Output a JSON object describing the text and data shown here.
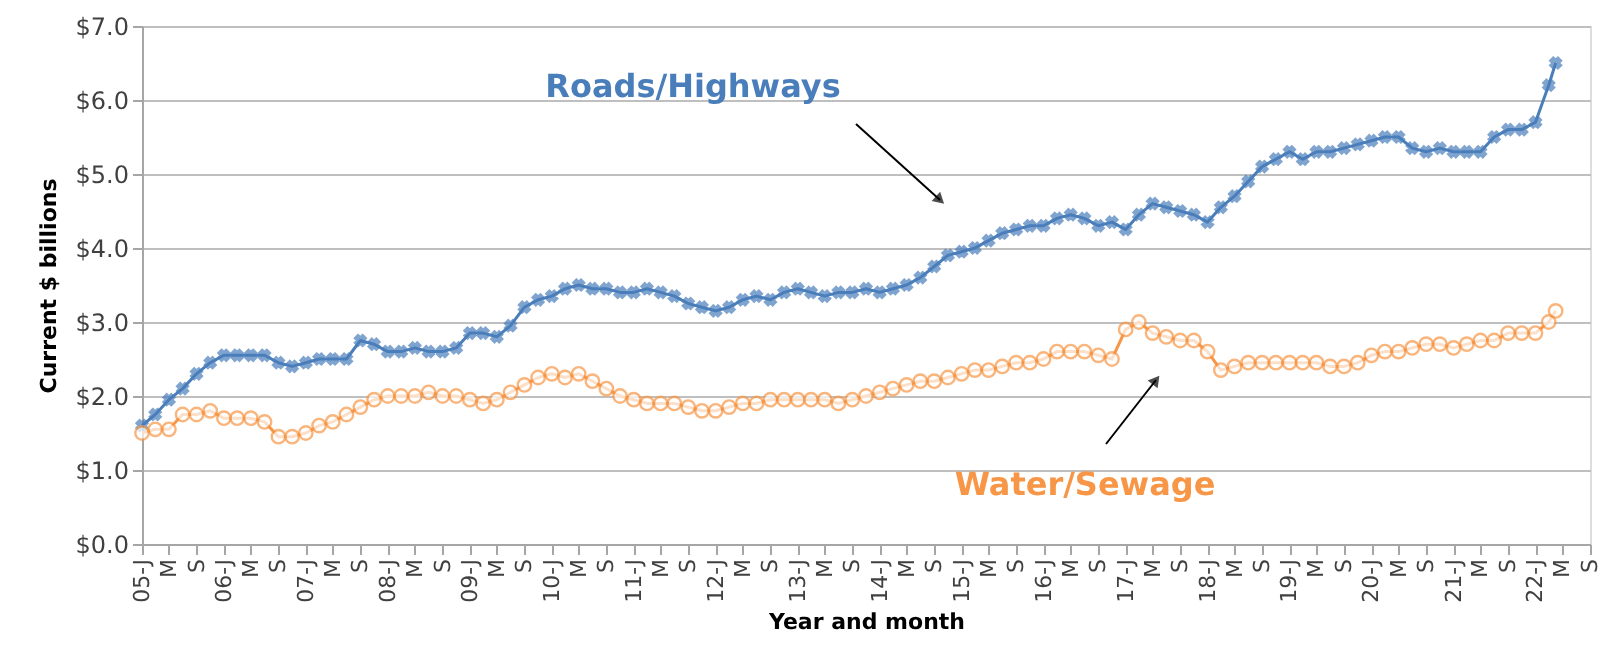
{
  "chart_data": {
    "type": "line",
    "xlabel": "Year and month",
    "ylabel": "Current $ billions",
    "x": [
      "2005-01",
      "2005-03",
      "2005-05",
      "2005-07",
      "2005-09",
      "2005-11",
      "2006-01",
      "2006-03",
      "2006-05",
      "2006-07",
      "2006-09",
      "2006-11",
      "2007-01",
      "2007-03",
      "2007-05",
      "2007-07",
      "2007-09",
      "2007-11",
      "2008-01",
      "2008-03",
      "2008-05",
      "2008-07",
      "2008-09",
      "2008-11",
      "2009-01",
      "2009-03",
      "2009-05",
      "2009-07",
      "2009-09",
      "2009-11",
      "2010-01",
      "2010-03",
      "2010-05",
      "2010-07",
      "2010-09",
      "2010-11",
      "2011-01",
      "2011-03",
      "2011-05",
      "2011-07",
      "2011-09",
      "2011-11",
      "2012-01",
      "2012-03",
      "2012-05",
      "2012-07",
      "2012-09",
      "2012-11",
      "2013-01",
      "2013-03",
      "2013-05",
      "2013-07",
      "2013-09",
      "2013-11",
      "2014-01",
      "2014-03",
      "2014-05",
      "2014-07",
      "2014-09",
      "2014-11",
      "2015-01",
      "2015-03",
      "2015-05",
      "2015-07",
      "2015-09",
      "2015-11",
      "2016-01",
      "2016-03",
      "2016-05",
      "2016-07",
      "2016-09",
      "2016-11",
      "2017-01",
      "2017-03",
      "2017-05",
      "2017-07",
      "2017-09",
      "2017-11",
      "2018-01",
      "2018-03",
      "2018-05",
      "2018-07",
      "2018-09",
      "2018-11",
      "2019-01",
      "2019-03",
      "2019-05",
      "2019-07",
      "2019-09",
      "2019-11",
      "2020-01",
      "2020-03",
      "2020-05",
      "2020-07",
      "2020-09",
      "2020-11",
      "2021-01",
      "2021-03",
      "2021-05",
      "2021-07",
      "2021-09",
      "2021-11",
      "2022-01",
      "2022-03",
      "2022-04"
    ],
    "series": [
      {
        "name": "Roads/Highways",
        "color": "#4a7ebb",
        "marker": "cross",
        "values": [
          1.6,
          1.75,
          1.95,
          2.1,
          2.3,
          2.45,
          2.55,
          2.55,
          2.55,
          2.55,
          2.45,
          2.4,
          2.45,
          2.5,
          2.5,
          2.5,
          2.75,
          2.7,
          2.6,
          2.6,
          2.65,
          2.6,
          2.6,
          2.65,
          2.85,
          2.85,
          2.8,
          2.95,
          3.2,
          3.3,
          3.35,
          3.45,
          3.5,
          3.45,
          3.45,
          3.4,
          3.4,
          3.45,
          3.4,
          3.35,
          3.25,
          3.2,
          3.15,
          3.2,
          3.3,
          3.35,
          3.3,
          3.4,
          3.45,
          3.4,
          3.35,
          3.4,
          3.4,
          3.45,
          3.4,
          3.45,
          3.5,
          3.6,
          3.75,
          3.9,
          3.95,
          4.0,
          4.1,
          4.2,
          4.25,
          4.3,
          4.3,
          4.4,
          4.45,
          4.4,
          4.3,
          4.35,
          4.25,
          4.45,
          4.6,
          4.55,
          4.5,
          4.45,
          4.35,
          4.55,
          4.7,
          4.9,
          5.1,
          5.2,
          5.3,
          5.2,
          5.3,
          5.3,
          5.35,
          5.4,
          5.45,
          5.5,
          5.5,
          5.35,
          5.3,
          5.35,
          5.3,
          5.3,
          5.3,
          5.5,
          5.6,
          5.6,
          5.7,
          6.2,
          6.5
        ]
      },
      {
        "name": "Water/Sewage",
        "color": "#f79646",
        "marker": "circle",
        "values": [
          1.5,
          1.55,
          1.55,
          1.75,
          1.75,
          1.8,
          1.7,
          1.7,
          1.7,
          1.65,
          1.45,
          1.45,
          1.5,
          1.6,
          1.65,
          1.75,
          1.85,
          1.95,
          2.0,
          2.0,
          2.0,
          2.05,
          2.0,
          2.0,
          1.95,
          1.9,
          1.95,
          2.05,
          2.15,
          2.25,
          2.3,
          2.25,
          2.3,
          2.2,
          2.1,
          2.0,
          1.95,
          1.9,
          1.9,
          1.9,
          1.85,
          1.8,
          1.8,
          1.85,
          1.9,
          1.9,
          1.95,
          1.95,
          1.95,
          1.95,
          1.95,
          1.9,
          1.95,
          2.0,
          2.05,
          2.1,
          2.15,
          2.2,
          2.2,
          2.25,
          2.3,
          2.35,
          2.35,
          2.4,
          2.45,
          2.45,
          2.5,
          2.6,
          2.6,
          2.6,
          2.55,
          2.5,
          2.9,
          3.0,
          2.85,
          2.8,
          2.75,
          2.75,
          2.6,
          2.35,
          2.4,
          2.45,
          2.45,
          2.45,
          2.45,
          2.45,
          2.45,
          2.4,
          2.4,
          2.45,
          2.55,
          2.6,
          2.6,
          2.65,
          2.7,
          2.7,
          2.65,
          2.7,
          2.75,
          2.75,
          2.85,
          2.85,
          2.85,
          3.0,
          3.15
        ]
      }
    ],
    "xlim": [
      "2005-01",
      "2022-09"
    ],
    "xticks": [
      {
        "value": "2005-01",
        "label": "05-J"
      },
      {
        "value": "2005-05",
        "label": "M"
      },
      {
        "value": "2005-09",
        "label": "S"
      },
      {
        "value": "2006-01",
        "label": "06-J"
      },
      {
        "value": "2006-05",
        "label": "M"
      },
      {
        "value": "2006-09",
        "label": "S"
      },
      {
        "value": "2007-01",
        "label": "07-J"
      },
      {
        "value": "2007-05",
        "label": "M"
      },
      {
        "value": "2007-09",
        "label": "S"
      },
      {
        "value": "2008-01",
        "label": "08-J"
      },
      {
        "value": "2008-05",
        "label": "M"
      },
      {
        "value": "2008-09",
        "label": "S"
      },
      {
        "value": "2009-01",
        "label": "09-J"
      },
      {
        "value": "2009-05",
        "label": "M"
      },
      {
        "value": "2009-09",
        "label": "S"
      },
      {
        "value": "2010-01",
        "label": "10-J"
      },
      {
        "value": "2010-05",
        "label": "M"
      },
      {
        "value": "2010-09",
        "label": "S"
      },
      {
        "value": "2011-01",
        "label": "11-J"
      },
      {
        "value": "2011-05",
        "label": "M"
      },
      {
        "value": "2011-09",
        "label": "S"
      },
      {
        "value": "2012-01",
        "label": "12-J"
      },
      {
        "value": "2012-05",
        "label": "M"
      },
      {
        "value": "2012-09",
        "label": "S"
      },
      {
        "value": "2013-01",
        "label": "13-J"
      },
      {
        "value": "2013-05",
        "label": "M"
      },
      {
        "value": "2013-09",
        "label": "S"
      },
      {
        "value": "2014-01",
        "label": "14-J"
      },
      {
        "value": "2014-05",
        "label": "M"
      },
      {
        "value": "2014-09",
        "label": "S"
      },
      {
        "value": "2015-01",
        "label": "15-J"
      },
      {
        "value": "2015-05",
        "label": "M"
      },
      {
        "value": "2015-09",
        "label": "S"
      },
      {
        "value": "2016-01",
        "label": "16-J"
      },
      {
        "value": "2016-05",
        "label": "M"
      },
      {
        "value": "2016-09",
        "label": "S"
      },
      {
        "value": "2017-01",
        "label": "17-J"
      },
      {
        "value": "2017-05",
        "label": "M"
      },
      {
        "value": "2017-09",
        "label": "S"
      },
      {
        "value": "2018-01",
        "label": "18-J"
      },
      {
        "value": "2018-05",
        "label": "M"
      },
      {
        "value": "2018-09",
        "label": "S"
      },
      {
        "value": "2019-01",
        "label": "19-J"
      },
      {
        "value": "2019-05",
        "label": "M"
      },
      {
        "value": "2019-09",
        "label": "S"
      },
      {
        "value": "2020-01",
        "label": "20-J"
      },
      {
        "value": "2020-05",
        "label": "M"
      },
      {
        "value": "2020-09",
        "label": "S"
      },
      {
        "value": "2021-01",
        "label": "21-J"
      },
      {
        "value": "2021-05",
        "label": "M"
      },
      {
        "value": "2021-09",
        "label": "S"
      },
      {
        "value": "2022-01",
        "label": "22-J"
      },
      {
        "value": "2022-05",
        "label": "M"
      },
      {
        "value": "2022-09",
        "label": "S"
      }
    ],
    "ylim": [
      0,
      7
    ],
    "yticks": [
      {
        "value": 0,
        "label": "$0.0"
      },
      {
        "value": 1,
        "label": "$1.0"
      },
      {
        "value": 2,
        "label": "$2.0"
      },
      {
        "value": 3,
        "label": "$3.0"
      },
      {
        "value": 4,
        "label": "$4.0"
      },
      {
        "value": 5,
        "label": "$5.0"
      },
      {
        "value": 6,
        "label": "$6.0"
      },
      {
        "value": 7,
        "label": "$7.0"
      }
    ],
    "grid": "y"
  }
}
